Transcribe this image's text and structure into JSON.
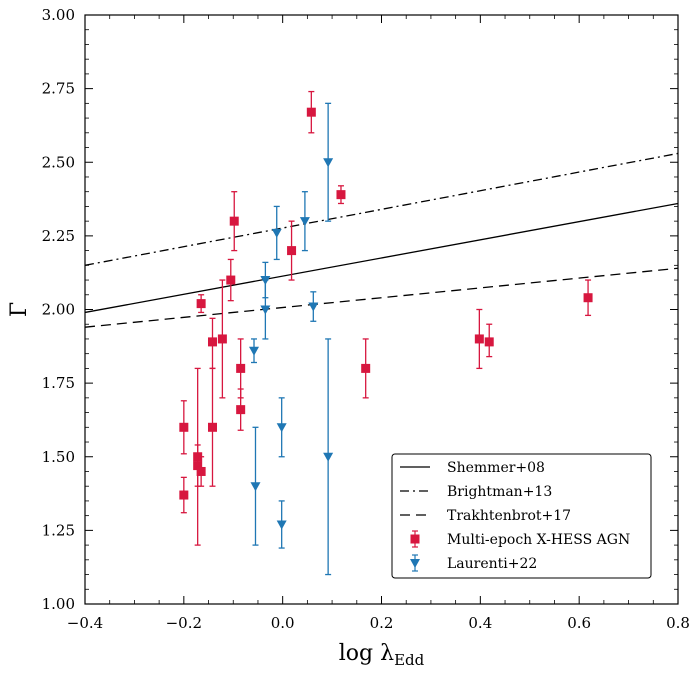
{
  "chart_data": {
    "type": "scatter",
    "xlabel_main": "log λ",
    "xlabel_sub": "Edd",
    "ylabel": "Γ",
    "xlim": [
      -0.4,
      0.8
    ],
    "ylim": [
      1.0,
      3.0
    ],
    "x_ticks": [
      -0.4,
      -0.2,
      0.0,
      0.2,
      0.4,
      0.6,
      0.8
    ],
    "x_tick_labels": [
      "−0.4",
      "−0.2",
      "0.0",
      "0.2",
      "0.4",
      "0.6",
      "0.8"
    ],
    "y_ticks": [
      1.0,
      1.25,
      1.5,
      1.75,
      2.0,
      2.25,
      2.5,
      2.75,
      3.0
    ],
    "y_tick_labels": [
      "1.00",
      "1.25",
      "1.50",
      "1.75",
      "2.00",
      "2.25",
      "2.50",
      "2.75",
      "3.00"
    ],
    "legend_position": "lower-right",
    "lines": [
      {
        "name": "Shemmer+08",
        "style": "solid",
        "x": [
          -0.4,
          0.8
        ],
        "y": [
          1.99,
          2.36
        ],
        "color": "#000000"
      },
      {
        "name": "Brightman+13",
        "style": "dashdot",
        "x": [
          -0.4,
          0.8
        ],
        "y": [
          2.15,
          2.53
        ],
        "color": "#000000"
      },
      {
        "name": "Trakhtenbrot+17",
        "style": "dashed",
        "x": [
          -0.4,
          0.8
        ],
        "y": [
          1.94,
          2.14
        ],
        "color": "#000000"
      }
    ],
    "series": [
      {
        "name": "Multi-epoch X-HESS AGN",
        "marker": "square",
        "color": "#d7173f",
        "points": [
          {
            "x": -0.2,
            "y": 1.6,
            "lo": 1.51,
            "hi": 1.69
          },
          {
            "x": -0.2,
            "y": 1.37,
            "lo": 1.31,
            "hi": 1.43
          },
          {
            "x": -0.172,
            "y": 1.5,
            "lo": 1.2,
            "hi": 1.8
          },
          {
            "x": -0.172,
            "y": 1.47,
            "lo": 1.4,
            "hi": 1.54
          },
          {
            "x": -0.165,
            "y": 2.02,
            "lo": 1.99,
            "hi": 2.05
          },
          {
            "x": -0.165,
            "y": 1.45,
            "lo": 1.4,
            "hi": 1.5
          },
          {
            "x": -0.142,
            "y": 1.89,
            "lo": 1.8,
            "hi": 1.97
          },
          {
            "x": -0.142,
            "y": 1.6,
            "lo": 1.4,
            "hi": 1.8
          },
          {
            "x": -0.122,
            "y": 1.9,
            "lo": 1.7,
            "hi": 2.1
          },
          {
            "x": -0.105,
            "y": 2.1,
            "lo": 2.03,
            "hi": 2.17
          },
          {
            "x": -0.098,
            "y": 2.3,
            "lo": 2.2,
            "hi": 2.4
          },
          {
            "x": -0.085,
            "y": 1.8,
            "lo": 1.7,
            "hi": 1.9
          },
          {
            "x": -0.085,
            "y": 1.66,
            "lo": 1.59,
            "hi": 1.73
          },
          {
            "x": 0.018,
            "y": 2.2,
            "lo": 2.1,
            "hi": 2.3
          },
          {
            "x": 0.058,
            "y": 2.67,
            "lo": 2.6,
            "hi": 2.74
          },
          {
            "x": 0.118,
            "y": 2.39,
            "lo": 2.36,
            "hi": 2.42
          },
          {
            "x": 0.168,
            "y": 1.8,
            "lo": 1.7,
            "hi": 1.9
          },
          {
            "x": 0.398,
            "y": 1.9,
            "lo": 1.8,
            "hi": 2.0
          },
          {
            "x": 0.418,
            "y": 1.89,
            "lo": 1.84,
            "hi": 1.95
          },
          {
            "x": 0.618,
            "y": 2.04,
            "lo": 1.98,
            "hi": 2.1
          }
        ]
      },
      {
        "name": "Laurenti+22",
        "marker": "triangle-down",
        "color": "#1f77b4",
        "points": [
          {
            "x": -0.058,
            "y": 1.86,
            "lo": 1.82,
            "hi": 1.9
          },
          {
            "x": -0.055,
            "y": 1.4,
            "lo": 1.2,
            "hi": 1.6
          },
          {
            "x": -0.035,
            "y": 2.1,
            "lo": 2.04,
            "hi": 2.16
          },
          {
            "x": -0.035,
            "y": 2.0,
            "lo": 1.9,
            "hi": 2.1
          },
          {
            "x": -0.012,
            "y": 2.26,
            "lo": 2.17,
            "hi": 2.35
          },
          {
            "x": -0.002,
            "y": 1.6,
            "lo": 1.5,
            "hi": 1.7
          },
          {
            "x": -0.002,
            "y": 1.27,
            "lo": 1.19,
            "hi": 1.35
          },
          {
            "x": 0.045,
            "y": 2.3,
            "lo": 2.2,
            "hi": 2.4
          },
          {
            "x": 0.062,
            "y": 2.01,
            "lo": 1.96,
            "hi": 2.06
          },
          {
            "x": 0.092,
            "y": 2.5,
            "lo": 2.3,
            "hi": 2.7
          },
          {
            "x": 0.092,
            "y": 1.5,
            "lo": 1.1,
            "hi": 1.9
          }
        ]
      }
    ]
  }
}
